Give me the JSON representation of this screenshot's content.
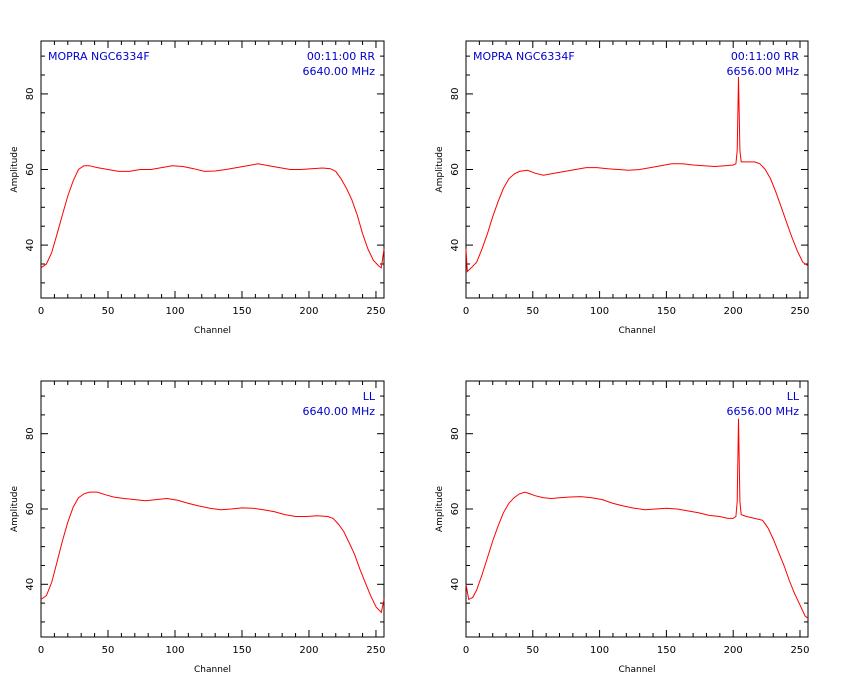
{
  "colors": {
    "trace": "#ff0000",
    "annotation": "#0000cc",
    "axes": "#000000",
    "background": "#ffffff"
  },
  "chart_data": [
    {
      "type": "line",
      "panel": "top-left",
      "xlabel": "Channel",
      "ylabel": "Amplitude",
      "xlim": [
        0,
        256
      ],
      "ylim": [
        26,
        94
      ],
      "xticks": [
        0,
        50,
        100,
        150,
        200,
        250
      ],
      "yticks": [
        40,
        60,
        80
      ],
      "xtick_labels": [
        "0",
        "50",
        "100",
        "150",
        "200",
        "250"
      ],
      "ytick_labels": [
        "40",
        "60",
        "80"
      ],
      "annot_left": "MOPRA NGC6334F",
      "annot_right1": "00:11:00  RR",
      "annot_right2": "6640.00  MHz",
      "series": [
        {
          "values": [
            [
              0,
              34
            ],
            [
              4,
              35
            ],
            [
              8,
              38
            ],
            [
              12,
              43
            ],
            [
              16,
              48
            ],
            [
              20,
              53
            ],
            [
              24,
              57
            ],
            [
              28,
              60
            ],
            [
              32,
              61
            ],
            [
              36,
              61
            ],
            [
              42,
              60.5
            ],
            [
              50,
              60
            ],
            [
              58,
              59.5
            ],
            [
              66,
              59.5
            ],
            [
              74,
              60
            ],
            [
              82,
              60
            ],
            [
              90,
              60.5
            ],
            [
              98,
              61
            ],
            [
              106,
              60.8
            ],
            [
              114,
              60.2
            ],
            [
              122,
              59.5
            ],
            [
              130,
              59.6
            ],
            [
              138,
              60
            ],
            [
              146,
              60.5
            ],
            [
              154,
              61
            ],
            [
              162,
              61.5
            ],
            [
              170,
              61
            ],
            [
              178,
              60.5
            ],
            [
              186,
              60
            ],
            [
              194,
              60
            ],
            [
              202,
              60.2
            ],
            [
              210,
              60.4
            ],
            [
              216,
              60.2
            ],
            [
              220,
              59.5
            ],
            [
              224,
              57.5
            ],
            [
              228,
              55
            ],
            [
              232,
              52
            ],
            [
              236,
              48
            ],
            [
              240,
              43
            ],
            [
              244,
              39
            ],
            [
              248,
              36
            ],
            [
              252,
              34.5
            ],
            [
              254,
              34
            ],
            [
              256,
              39
            ]
          ]
        }
      ]
    },
    {
      "type": "line",
      "panel": "top-right",
      "xlabel": "Channel",
      "ylabel": "Amplitude",
      "xlim": [
        0,
        256
      ],
      "ylim": [
        26,
        94
      ],
      "xticks": [
        0,
        50,
        100,
        150,
        200,
        250
      ],
      "yticks": [
        40,
        60,
        80
      ],
      "xtick_labels": [
        "0",
        "50",
        "100",
        "150",
        "200",
        "250"
      ],
      "ytick_labels": [
        "40",
        "60",
        "80"
      ],
      "annot_left": "MOPRA NGC6334F",
      "annot_right1": "00:11:00  RR",
      "annot_right2": "6656.00  MHz",
      "series": [
        {
          "values": [
            [
              0,
              39
            ],
            [
              1,
              33
            ],
            [
              4,
              34
            ],
            [
              8,
              35.5
            ],
            [
              12,
              39
            ],
            [
              16,
              43
            ],
            [
              20,
              47.5
            ],
            [
              24,
              51.5
            ],
            [
              28,
              55
            ],
            [
              32,
              57.5
            ],
            [
              36,
              58.8
            ],
            [
              40,
              59.5
            ],
            [
              46,
              59.8
            ],
            [
              52,
              59
            ],
            [
              58,
              58.5
            ],
            [
              66,
              59
            ],
            [
              74,
              59.5
            ],
            [
              82,
              60
            ],
            [
              90,
              60.5
            ],
            [
              98,
              60.5
            ],
            [
              106,
              60.2
            ],
            [
              114,
              60
            ],
            [
              122,
              59.8
            ],
            [
              130,
              60
            ],
            [
              138,
              60.5
            ],
            [
              146,
              61
            ],
            [
              154,
              61.5
            ],
            [
              162,
              61.5
            ],
            [
              170,
              61.2
            ],
            [
              178,
              61
            ],
            [
              186,
              60.8
            ],
            [
              194,
              61
            ],
            [
              200,
              61.2
            ],
            [
              202,
              61.5
            ],
            [
              203,
              65
            ],
            [
              204,
              84.5
            ],
            [
              205,
              65
            ],
            [
              206,
              62
            ],
            [
              210,
              62
            ],
            [
              216,
              62
            ],
            [
              220,
              61.5
            ],
            [
              224,
              60
            ],
            [
              228,
              57.5
            ],
            [
              232,
              54
            ],
            [
              236,
              50
            ],
            [
              240,
              46
            ],
            [
              244,
              42
            ],
            [
              248,
              38.5
            ],
            [
              252,
              35.5
            ],
            [
              256,
              34.5
            ]
          ]
        }
      ]
    },
    {
      "type": "line",
      "panel": "bottom-left",
      "xlabel": "Channel",
      "ylabel": "Amplitude",
      "xlim": [
        0,
        256
      ],
      "ylim": [
        26,
        94
      ],
      "xticks": [
        0,
        50,
        100,
        150,
        200,
        250
      ],
      "yticks": [
        40,
        60,
        80
      ],
      "xtick_labels": [
        "0",
        "50",
        "100",
        "150",
        "200",
        "250"
      ],
      "ytick_labels": [
        "40",
        "60",
        "80"
      ],
      "annot_left": "",
      "annot_right1": "LL",
      "annot_right2": "6640.00  MHz",
      "series": [
        {
          "values": [
            [
              0,
              36
            ],
            [
              4,
              37
            ],
            [
              8,
              40.5
            ],
            [
              12,
              46
            ],
            [
              16,
              51.5
            ],
            [
              20,
              56.5
            ],
            [
              24,
              60.5
            ],
            [
              28,
              63
            ],
            [
              32,
              64
            ],
            [
              36,
              64.5
            ],
            [
              42,
              64.5
            ],
            [
              48,
              63.8
            ],
            [
              54,
              63.2
            ],
            [
              62,
              62.8
            ],
            [
              70,
              62.5
            ],
            [
              78,
              62.2
            ],
            [
              86,
              62.5
            ],
            [
              94,
              62.8
            ],
            [
              102,
              62.3
            ],
            [
              110,
              61.5
            ],
            [
              118,
              60.8
            ],
            [
              126,
              60.2
            ],
            [
              134,
              59.8
            ],
            [
              142,
              60
            ],
            [
              150,
              60.3
            ],
            [
              158,
              60.2
            ],
            [
              166,
              59.8
            ],
            [
              174,
              59.3
            ],
            [
              182,
              58.5
            ],
            [
              190,
              58
            ],
            [
              198,
              58
            ],
            [
              206,
              58.2
            ],
            [
              214,
              58
            ],
            [
              218,
              57.5
            ],
            [
              222,
              56
            ],
            [
              226,
              54
            ],
            [
              230,
              51
            ],
            [
              234,
              48
            ],
            [
              238,
              44
            ],
            [
              242,
              40.5
            ],
            [
              246,
              37
            ],
            [
              250,
              34
            ],
            [
              254,
              32.5
            ],
            [
              256,
              36
            ]
          ]
        }
      ]
    },
    {
      "type": "line",
      "panel": "bottom-right",
      "xlabel": "Channel",
      "ylabel": "Amplitude",
      "xlim": [
        0,
        256
      ],
      "ylim": [
        26,
        94
      ],
      "xticks": [
        0,
        50,
        100,
        150,
        200,
        250
      ],
      "yticks": [
        40,
        60,
        80
      ],
      "xtick_labels": [
        "0",
        "50",
        "100",
        "150",
        "200",
        "250"
      ],
      "ytick_labels": [
        "40",
        "60",
        "80"
      ],
      "annot_left": "",
      "annot_right1": "LL",
      "annot_right2": "6656.00  MHz",
      "series": [
        {
          "values": [
            [
              0,
              40
            ],
            [
              2,
              36
            ],
            [
              5,
              36.5
            ],
            [
              8,
              38.5
            ],
            [
              12,
              42.5
            ],
            [
              16,
              47
            ],
            [
              20,
              51.5
            ],
            [
              24,
              55.5
            ],
            [
              28,
              59
            ],
            [
              32,
              61.5
            ],
            [
              36,
              63
            ],
            [
              40,
              64
            ],
            [
              44,
              64.5
            ],
            [
              48,
              64
            ],
            [
              52,
              63.5
            ],
            [
              58,
              63
            ],
            [
              64,
              62.8
            ],
            [
              70,
              63
            ],
            [
              78,
              63.2
            ],
            [
              86,
              63.3
            ],
            [
              94,
              63
            ],
            [
              102,
              62.5
            ],
            [
              110,
              61.5
            ],
            [
              118,
              60.8
            ],
            [
              126,
              60.2
            ],
            [
              134,
              59.8
            ],
            [
              142,
              60
            ],
            [
              150,
              60.2
            ],
            [
              158,
              60
            ],
            [
              166,
              59.5
            ],
            [
              174,
              59
            ],
            [
              182,
              58.3
            ],
            [
              190,
              58
            ],
            [
              196,
              57.5
            ],
            [
              200,
              57.5
            ],
            [
              202,
              58
            ],
            [
              203,
              62
            ],
            [
              204,
              84
            ],
            [
              205,
              62
            ],
            [
              206,
              58.5
            ],
            [
              210,
              58
            ],
            [
              216,
              57.5
            ],
            [
              222,
              57
            ],
            [
              226,
              55
            ],
            [
              230,
              52
            ],
            [
              234,
              48.5
            ],
            [
              238,
              45
            ],
            [
              242,
              41
            ],
            [
              246,
              37.5
            ],
            [
              250,
              34.5
            ],
            [
              254,
              31.5
            ],
            [
              256,
              31
            ]
          ]
        }
      ]
    }
  ]
}
